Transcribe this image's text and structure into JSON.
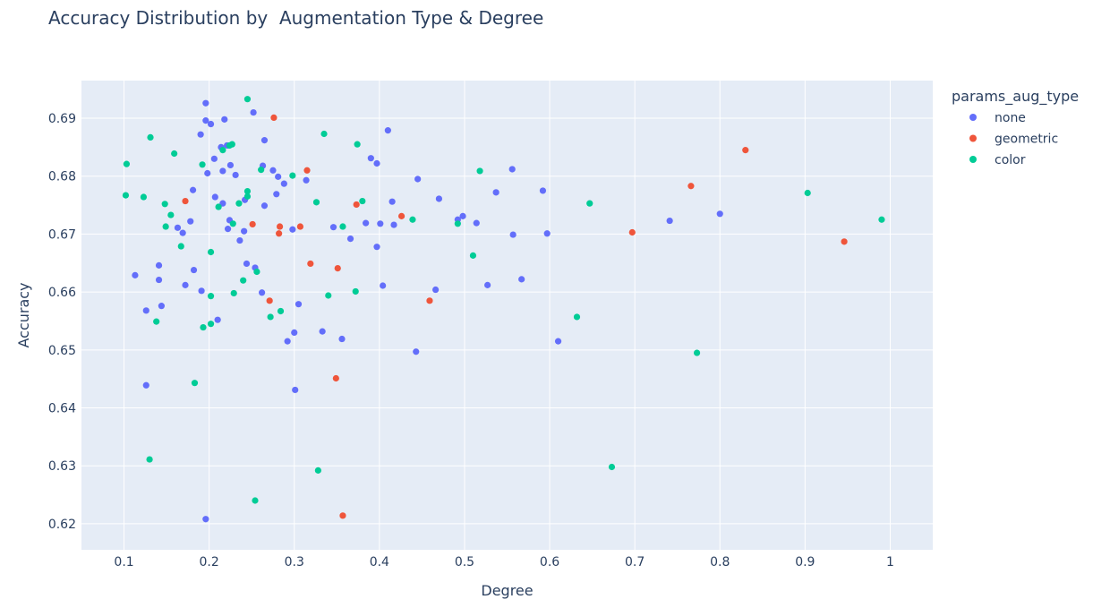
{
  "chart_data": {
    "type": "scatter",
    "title": "Accuracy Distribution by  Augmentation Type & Degree",
    "xlabel": "Degree",
    "ylabel": "Accuracy",
    "xlim": [
      0.05,
      1.05
    ],
    "ylim": [
      0.6155,
      0.6965
    ],
    "x_ticks": [
      0.1,
      0.2,
      0.3,
      0.4,
      0.5,
      0.6,
      0.7,
      0.8,
      0.9,
      1.0
    ],
    "x_tick_labels": [
      "0.1",
      "0.2",
      "0.3",
      "0.4",
      "0.5",
      "0.6",
      "0.7",
      "0.8",
      "0.9",
      "1"
    ],
    "y_ticks": [
      0.62,
      0.63,
      0.64,
      0.65,
      0.66,
      0.67,
      0.68,
      0.69
    ],
    "y_tick_labels": [
      "0.62",
      "0.63",
      "0.64",
      "0.65",
      "0.66",
      "0.67",
      "0.68",
      "0.69"
    ],
    "grid": true,
    "plot_background": "#e5ecf6",
    "legend": {
      "title": "params_aug_type",
      "placement": "right"
    },
    "series": [
      {
        "name": "none",
        "color": "#636efa",
        "points": [
          [
            0.196,
            0.6926
          ],
          [
            0.218,
            0.6898
          ],
          [
            0.196,
            0.6896
          ],
          [
            0.202,
            0.689
          ],
          [
            0.252,
            0.691
          ],
          [
            0.265,
            0.6862
          ],
          [
            0.41,
            0.6879
          ],
          [
            0.19,
            0.6872
          ],
          [
            0.214,
            0.685
          ],
          [
            0.221,
            0.6853
          ],
          [
            0.225,
            0.6819
          ],
          [
            0.206,
            0.683
          ],
          [
            0.198,
            0.6805
          ],
          [
            0.216,
            0.6809
          ],
          [
            0.231,
            0.6802
          ],
          [
            0.263,
            0.6818
          ],
          [
            0.275,
            0.681
          ],
          [
            0.281,
            0.6799
          ],
          [
            0.288,
            0.6787
          ],
          [
            0.314,
            0.6793
          ],
          [
            0.39,
            0.6831
          ],
          [
            0.397,
            0.6822
          ],
          [
            0.445,
            0.6795
          ],
          [
            0.181,
            0.6776
          ],
          [
            0.207,
            0.6764
          ],
          [
            0.242,
            0.6759
          ],
          [
            0.279,
            0.6769
          ],
          [
            0.265,
            0.6749
          ],
          [
            0.216,
            0.6753
          ],
          [
            0.178,
            0.6722
          ],
          [
            0.163,
            0.6711
          ],
          [
            0.169,
            0.6702
          ],
          [
            0.222,
            0.6709
          ],
          [
            0.224,
            0.6724
          ],
          [
            0.241,
            0.6705
          ],
          [
            0.236,
            0.6689
          ],
          [
            0.298,
            0.6708
          ],
          [
            0.346,
            0.6712
          ],
          [
            0.366,
            0.6692
          ],
          [
            0.384,
            0.6719
          ],
          [
            0.401,
            0.6718
          ],
          [
            0.397,
            0.6678
          ],
          [
            0.415,
            0.6756
          ],
          [
            0.417,
            0.6716
          ],
          [
            0.47,
            0.6761
          ],
          [
            0.492,
            0.6725
          ],
          [
            0.498,
            0.6731
          ],
          [
            0.514,
            0.6719
          ],
          [
            0.537,
            0.6772
          ],
          [
            0.556,
            0.6812
          ],
          [
            0.557,
            0.6699
          ],
          [
            0.592,
            0.6775
          ],
          [
            0.597,
            0.6701
          ],
          [
            0.741,
            0.6723
          ],
          [
            0.8,
            0.6735
          ],
          [
            0.113,
            0.6629
          ],
          [
            0.141,
            0.6646
          ],
          [
            0.141,
            0.6621
          ],
          [
            0.172,
            0.6612
          ],
          [
            0.182,
            0.6638
          ],
          [
            0.191,
            0.6602
          ],
          [
            0.244,
            0.6649
          ],
          [
            0.254,
            0.6642
          ],
          [
            0.262,
            0.6599
          ],
          [
            0.21,
            0.6552
          ],
          [
            0.126,
            0.6568
          ],
          [
            0.144,
            0.6576
          ],
          [
            0.305,
            0.6579
          ],
          [
            0.3,
            0.653
          ],
          [
            0.333,
            0.6532
          ],
          [
            0.292,
            0.6515
          ],
          [
            0.356,
            0.6519
          ],
          [
            0.404,
            0.6611
          ],
          [
            0.466,
            0.6604
          ],
          [
            0.527,
            0.6612
          ],
          [
            0.567,
            0.6622
          ],
          [
            0.61,
            0.6515
          ],
          [
            0.443,
            0.6497
          ],
          [
            0.126,
            0.6439
          ],
          [
            0.301,
            0.6431
          ],
          [
            0.196,
            0.6208
          ]
        ]
      },
      {
        "name": "geometric",
        "color": "#ef553b",
        "points": [
          [
            0.276,
            0.6901
          ],
          [
            0.315,
            0.681
          ],
          [
            0.172,
            0.6757
          ],
          [
            0.373,
            0.6751
          ],
          [
            0.426,
            0.6731
          ],
          [
            0.251,
            0.6717
          ],
          [
            0.283,
            0.6713
          ],
          [
            0.307,
            0.6713
          ],
          [
            0.282,
            0.6701
          ],
          [
            0.319,
            0.6649
          ],
          [
            0.351,
            0.6641
          ],
          [
            0.271,
            0.6585
          ],
          [
            0.459,
            0.6585
          ],
          [
            0.349,
            0.6451
          ],
          [
            0.357,
            0.6214
          ],
          [
            0.697,
            0.6703
          ],
          [
            0.766,
            0.6783
          ],
          [
            0.83,
            0.6845
          ],
          [
            0.946,
            0.6687
          ]
        ]
      },
      {
        "name": "color",
        "color": "#00cc96",
        "points": [
          [
            0.245,
            0.6933
          ],
          [
            0.131,
            0.6867
          ],
          [
            0.103,
            0.6821
          ],
          [
            0.159,
            0.6839
          ],
          [
            0.192,
            0.682
          ],
          [
            0.216,
            0.6845
          ],
          [
            0.224,
            0.6853
          ],
          [
            0.227,
            0.6855
          ],
          [
            0.335,
            0.6873
          ],
          [
            0.374,
            0.6855
          ],
          [
            0.261,
            0.6811
          ],
          [
            0.298,
            0.6801
          ],
          [
            0.102,
            0.6767
          ],
          [
            0.123,
            0.6764
          ],
          [
            0.148,
            0.6752
          ],
          [
            0.155,
            0.6733
          ],
          [
            0.149,
            0.6713
          ],
          [
            0.167,
            0.6679
          ],
          [
            0.211,
            0.6747
          ],
          [
            0.235,
            0.6753
          ],
          [
            0.245,
            0.6774
          ],
          [
            0.245,
            0.6765
          ],
          [
            0.228,
            0.6718
          ],
          [
            0.326,
            0.6755
          ],
          [
            0.38,
            0.6757
          ],
          [
            0.357,
            0.6713
          ],
          [
            0.439,
            0.6725
          ],
          [
            0.492,
            0.6718
          ],
          [
            0.518,
            0.6809
          ],
          [
            0.647,
            0.6753
          ],
          [
            0.903,
            0.6771
          ],
          [
            0.99,
            0.6725
          ],
          [
            0.202,
            0.6669
          ],
          [
            0.256,
            0.6635
          ],
          [
            0.24,
            0.662
          ],
          [
            0.229,
            0.6598
          ],
          [
            0.202,
            0.6593
          ],
          [
            0.34,
            0.6594
          ],
          [
            0.372,
            0.6601
          ],
          [
            0.51,
            0.6663
          ],
          [
            0.138,
            0.6549
          ],
          [
            0.193,
            0.6539
          ],
          [
            0.202,
            0.6545
          ],
          [
            0.272,
            0.6557
          ],
          [
            0.284,
            0.6567
          ],
          [
            0.632,
            0.6557
          ],
          [
            0.183,
            0.6443
          ],
          [
            0.773,
            0.6495
          ],
          [
            0.13,
            0.6311
          ],
          [
            0.328,
            0.6292
          ],
          [
            0.254,
            0.624
          ],
          [
            0.673,
            0.6298
          ]
        ]
      }
    ]
  }
}
